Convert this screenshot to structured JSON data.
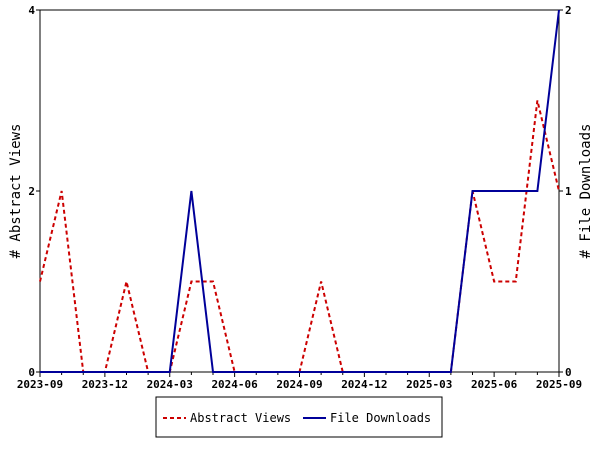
{
  "chart_data": {
    "type": "line",
    "x": [
      "2023-09",
      "2023-10",
      "2023-11",
      "2023-12",
      "2024-01",
      "2024-02",
      "2024-03",
      "2024-04",
      "2024-05",
      "2024-06",
      "2024-07",
      "2024-08",
      "2024-09",
      "2024-10",
      "2024-11",
      "2024-12",
      "2025-01",
      "2025-02",
      "2025-03",
      "2025-04",
      "2025-05",
      "2025-06",
      "2025-07",
      "2025-08",
      "2025-09"
    ],
    "x_ticks": [
      "2023-09",
      "2023-12",
      "2024-03",
      "2024-06",
      "2024-09",
      "2024-12",
      "2025-03",
      "2025-06",
      "2025-09"
    ],
    "series": [
      {
        "name": "Abstract Views",
        "axis": "left",
        "color": "#cc0000",
        "dash": "dashed",
        "values": [
          1,
          2,
          0,
          0,
          1,
          0,
          0,
          1,
          1,
          0,
          0,
          0,
          0,
          1,
          0,
          0,
          0,
          0,
          0,
          0,
          2,
          1,
          1,
          3,
          2
        ]
      },
      {
        "name": "File Downloads",
        "axis": "right",
        "color": "#000099",
        "dash": "solid",
        "values": [
          0,
          0,
          0,
          0,
          0,
          0,
          0,
          1,
          0,
          0,
          0,
          0,
          0,
          0,
          0,
          0,
          0,
          0,
          0,
          0,
          1,
          1,
          1,
          1,
          2
        ]
      }
    ],
    "ylabel_left": "# Abstract Views",
    "ylabel_right": "# File Downloads",
    "ylim_left": [
      0,
      4
    ],
    "yticks_left": [
      "0",
      "2",
      "4"
    ],
    "ylim_right": [
      0,
      2
    ],
    "yticks_right": [
      "0",
      "1",
      "2"
    ],
    "grid": false,
    "legend_position": "bottom-center"
  }
}
